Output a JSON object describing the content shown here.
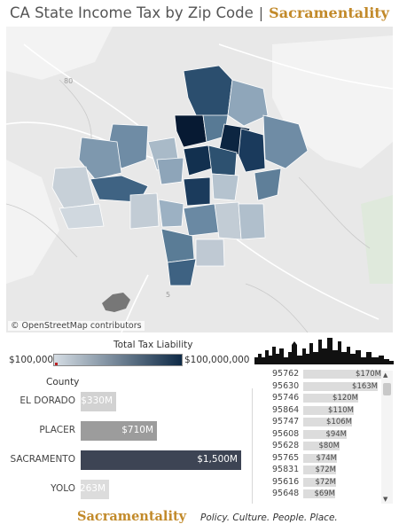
{
  "header": {
    "title": "CA State Income Tax by Zip Code",
    "separator": "|",
    "brand": "Sacramentality"
  },
  "map": {
    "attribution": "© OpenStreetMap contributors"
  },
  "legend": {
    "title": "Total Tax Liability",
    "min_label": "$100,000",
    "max_label": "$100,000,000",
    "color_low": "#d5dde4",
    "color_high": "#0e2a46"
  },
  "county_chart": {
    "header": "County",
    "max_value": 1500,
    "rows": [
      {
        "name": "EL DORADO",
        "value": 330,
        "label": "$330M",
        "color": "#d2d2d2"
      },
      {
        "name": "PLACER",
        "value": 710,
        "label": "$710M",
        "color": "#9c9c9c"
      },
      {
        "name": "SACRAMENTO",
        "value": 1500,
        "label": "$1,500M",
        "color": "#3d4454"
      },
      {
        "name": "YOLO",
        "value": 263,
        "label": "$263M",
        "color": "#dcdcdc"
      }
    ]
  },
  "zip_list": {
    "max_value": 170,
    "rows": [
      {
        "zip": "95762",
        "value": 170,
        "label": "$170M"
      },
      {
        "zip": "95630",
        "value": 163,
        "label": "$163M"
      },
      {
        "zip": "95746",
        "value": 120,
        "label": "$120M"
      },
      {
        "zip": "95864",
        "value": 110,
        "label": "$110M"
      },
      {
        "zip": "95747",
        "value": 106,
        "label": "$106M"
      },
      {
        "zip": "95608",
        "value": 94,
        "label": "$94M"
      },
      {
        "zip": "95628",
        "value": 80,
        "label": "$80M"
      },
      {
        "zip": "95765",
        "value": 74,
        "label": "$74M"
      },
      {
        "zip": "95831",
        "value": 72,
        "label": "$72M"
      },
      {
        "zip": "95616",
        "value": 72,
        "label": "$72M"
      },
      {
        "zip": "95648",
        "value": 69,
        "label": "$69M"
      }
    ]
  },
  "footer": {
    "brand": "Sacramentality",
    "tagline": "Policy. Culture. People. Place."
  }
}
